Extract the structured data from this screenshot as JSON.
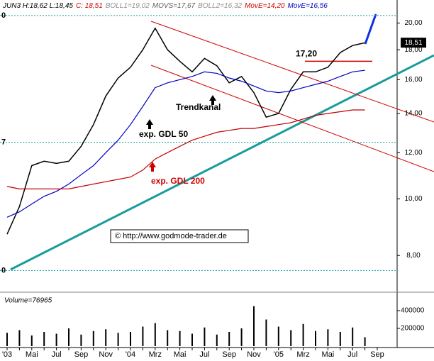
{
  "chart_data": {
    "type": "line",
    "header": [
      {
        "text": "JUN3 H:18,62 L:18,45",
        "color": "#000000"
      },
      {
        "text": "C: 18,51",
        "color": "#d00000"
      },
      {
        "text": "BOLL1=19,02",
        "color": "#909090"
      },
      {
        "text": "MOVS=17,67",
        "color": "#606060"
      },
      {
        "text": "BOLL2=16,32",
        "color": "#909090"
      },
      {
        "text": "MovE=14,20",
        "color": "#d00000"
      },
      {
        "text": "MovE=16,56",
        "color": "#0000c0"
      }
    ],
    "categories": [
      "'03",
      null,
      "Mai",
      null,
      "Jul",
      null,
      "Sep",
      null,
      "Nov",
      null,
      "'04",
      null,
      "Mrz",
      null,
      "Mai",
      null,
      "Jul",
      null,
      "Sep",
      null,
      "Nov",
      null,
      "'05",
      null,
      "Mrz",
      null,
      "Mai",
      null,
      "Jul",
      null,
      "Sep"
    ],
    "log_scale": true,
    "ylim": [
      6.96,
      21.9
    ],
    "yticks": [
      {
        "value": 8,
        "label": "8,00"
      },
      {
        "value": 10,
        "label": "10,00"
      },
      {
        "value": 12,
        "label": "12,00"
      },
      {
        "value": 14,
        "label": "14,00"
      },
      {
        "value": 16,
        "label": "16,00"
      },
      {
        "value": 18,
        "label": "18,00"
      },
      {
        "value": 20,
        "label": "20,00"
      }
    ],
    "series": [
      {
        "color": "#000000",
        "values": [
          8.7,
          9.7,
          11.4,
          11.6,
          11.5,
          11.6,
          12.3,
          13.4,
          15.0,
          16.1,
          16.8,
          18.0,
          19.6,
          18.0,
          17.2,
          16.5,
          17.4,
          16.9,
          15.8,
          16.2,
          15.2,
          13.8,
          14.0,
          15.4,
          16.5,
          16.5,
          16.8,
          17.8,
          18.3,
          18.5,
          null
        ]
      },
      {
        "name": "exp. GDL 50",
        "color": "#0000c0",
        "values": [
          9.3,
          9.5,
          9.8,
          10.1,
          10.3,
          10.6,
          11.0,
          11.4,
          12.0,
          12.6,
          13.4,
          14.4,
          15.5,
          15.8,
          16.0,
          16.2,
          16.5,
          16.4,
          16.1,
          15.9,
          15.6,
          15.3,
          15.2,
          15.3,
          15.5,
          15.7,
          15.9,
          16.2,
          16.5,
          16.6,
          null
        ]
      },
      {
        "name": "exp. GDL 200",
        "color": "#c00000",
        "values": [
          10.5,
          10.4,
          10.4,
          10.4,
          10.4,
          10.4,
          10.5,
          10.6,
          10.7,
          10.8,
          10.9,
          11.2,
          11.7,
          12.0,
          12.3,
          12.6,
          12.8,
          13.0,
          13.1,
          13.2,
          13.2,
          13.3,
          13.4,
          13.5,
          13.7,
          13.9,
          14.0,
          14.1,
          14.2,
          14.2,
          null
        ]
      }
    ],
    "last_value": {
      "value": 18.51,
      "label": "18,51"
    },
    "resistance": {
      "value": 17.2,
      "label": "17,20"
    },
    "fib_levels": [
      20.6,
      12.5,
      7.54
    ],
    "fib_labels": [
      "0",
      "7",
      "0"
    ],
    "annotation": "Trendkanal",
    "copyright": "© http://www.godmode-trader.de",
    "volume": {
      "label": "Volume=76965",
      "color": "#000000",
      "ylim": [
        0,
        560000
      ],
      "yticks": [
        200000,
        400000
      ],
      "values": [
        150000,
        180000,
        120000,
        160000,
        140000,
        200000,
        130000,
        170000,
        190000,
        150000,
        160000,
        220000,
        260000,
        180000,
        170000,
        140000,
        210000,
        130000,
        160000,
        200000,
        450000,
        300000,
        220000,
        180000,
        250000,
        170000,
        190000,
        160000,
        210000,
        100000,
        null
      ]
    }
  }
}
